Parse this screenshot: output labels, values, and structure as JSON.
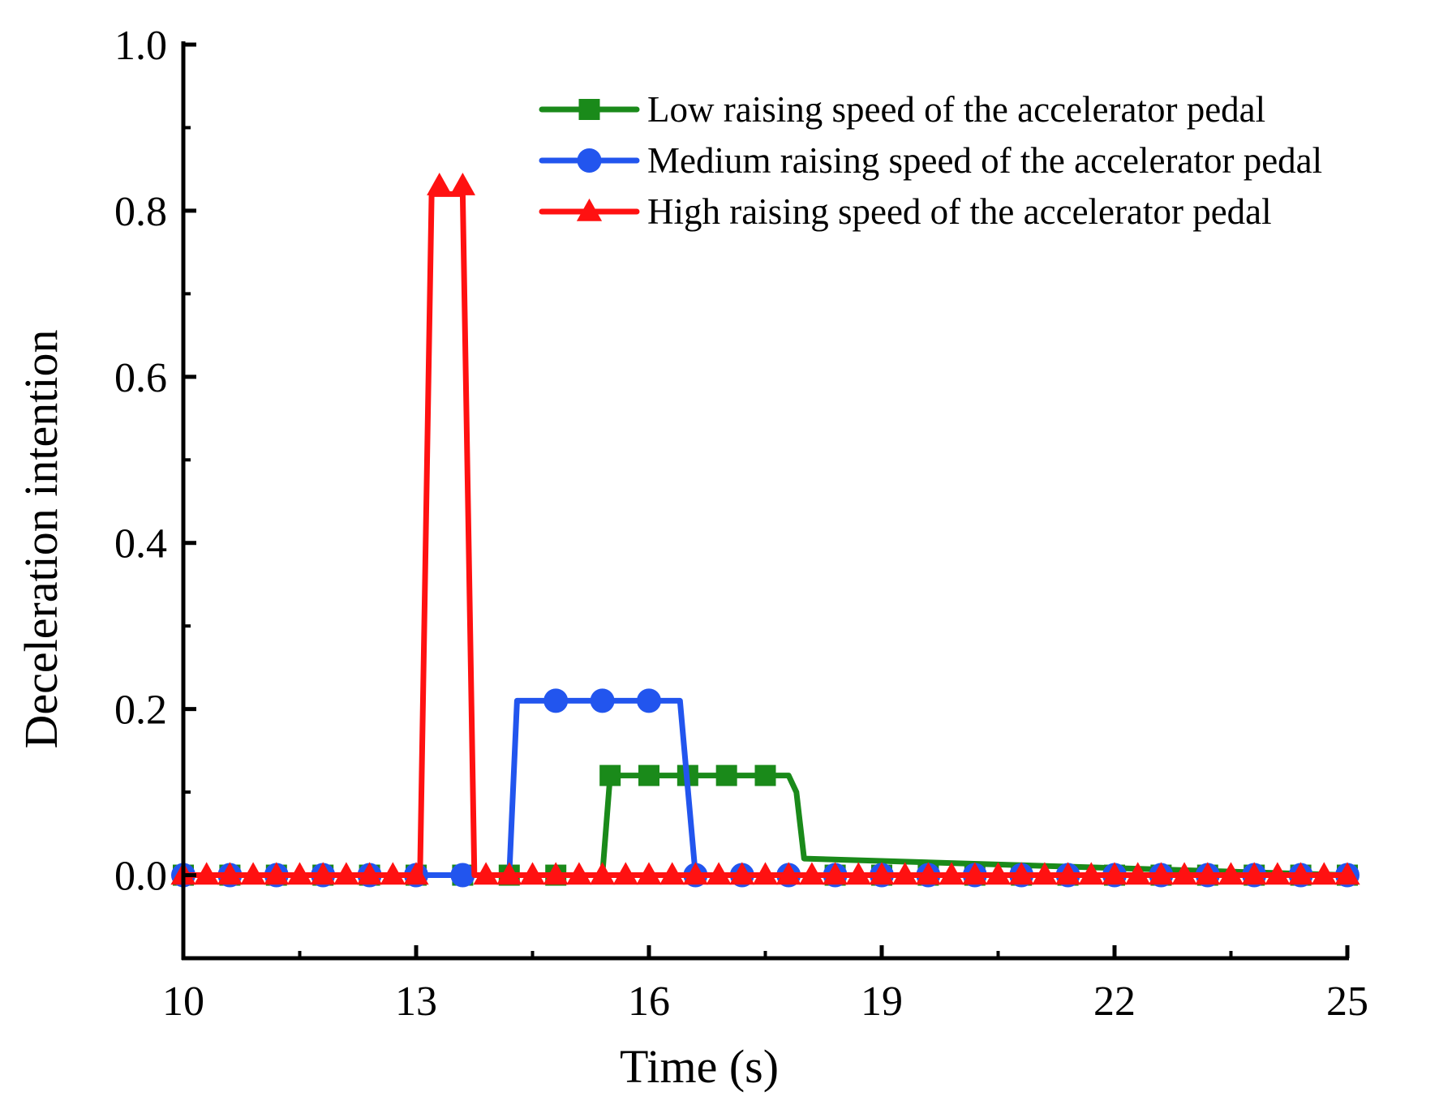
{
  "chart_data": {
    "type": "line",
    "title": "",
    "xlabel": "Time (s)",
    "ylabel": "Deceleration intention",
    "xlim": [
      10,
      25
    ],
    "ylim": [
      -0.1,
      1.0
    ],
    "xticks": [
      10,
      13,
      16,
      19,
      22,
      25
    ],
    "yticks": [
      0.0,
      0.2,
      0.4,
      0.6,
      0.8,
      1.0
    ],
    "xtick_labels": [
      "10",
      "13",
      "16",
      "19",
      "22",
      "25"
    ],
    "ytick_labels": [
      "0.0",
      "0.2",
      "0.4",
      "0.6",
      "0.8",
      "1.0"
    ],
    "legend_position": "top-right",
    "series": [
      {
        "name": "Low raising speed of the accelerator pedal",
        "color": "#1a8a1a",
        "marker": "square",
        "line": [
          [
            10,
            0
          ],
          [
            15.4,
            0
          ],
          [
            15.5,
            0.12
          ],
          [
            17.8,
            0.12
          ],
          [
            17.9,
            0.1
          ],
          [
            18.0,
            0.02
          ],
          [
            25,
            0
          ]
        ],
        "markers": [
          [
            10,
            0
          ],
          [
            10.6,
            0
          ],
          [
            11.2,
            0
          ],
          [
            11.8,
            0
          ],
          [
            12.4,
            0
          ],
          [
            13.0,
            0
          ],
          [
            13.6,
            0
          ],
          [
            14.2,
            0
          ],
          [
            14.8,
            0
          ],
          [
            15.5,
            0.12
          ],
          [
            16.0,
            0.12
          ],
          [
            16.5,
            0.12
          ],
          [
            17.0,
            0.12
          ],
          [
            17.5,
            0.12
          ],
          [
            18.4,
            0
          ],
          [
            19.0,
            0
          ],
          [
            19.6,
            0
          ],
          [
            20.2,
            0
          ],
          [
            20.8,
            0
          ],
          [
            21.4,
            0
          ],
          [
            22.0,
            0
          ],
          [
            22.6,
            0
          ],
          [
            23.2,
            0
          ],
          [
            23.8,
            0
          ],
          [
            24.4,
            0
          ],
          [
            25.0,
            0
          ]
        ]
      },
      {
        "name": "Medium raising speed of the accelerator pedal",
        "color": "#2255ee",
        "marker": "circle",
        "line": [
          [
            10,
            0
          ],
          [
            14.2,
            0
          ],
          [
            14.3,
            0.21
          ],
          [
            16.4,
            0.21
          ],
          [
            16.6,
            0
          ],
          [
            25,
            0
          ]
        ],
        "markers": [
          [
            10,
            0
          ],
          [
            10.6,
            0
          ],
          [
            11.2,
            0
          ],
          [
            11.8,
            0
          ],
          [
            12.4,
            0
          ],
          [
            13.0,
            0
          ],
          [
            13.6,
            0
          ],
          [
            14.8,
            0.21
          ],
          [
            15.4,
            0.21
          ],
          [
            16.0,
            0.21
          ],
          [
            16.6,
            0
          ],
          [
            17.2,
            0
          ],
          [
            17.8,
            0
          ],
          [
            18.4,
            0
          ],
          [
            19.0,
            0
          ],
          [
            19.6,
            0
          ],
          [
            20.2,
            0
          ],
          [
            20.8,
            0
          ],
          [
            21.4,
            0
          ],
          [
            22.0,
            0
          ],
          [
            22.6,
            0
          ],
          [
            23.2,
            0
          ],
          [
            23.8,
            0
          ],
          [
            24.4,
            0
          ],
          [
            25.0,
            0
          ]
        ]
      },
      {
        "name": "High raising speed of the accelerator pedal",
        "color": "#ff1111",
        "marker": "triangle",
        "line": [
          [
            10,
            0
          ],
          [
            13.05,
            0
          ],
          [
            13.2,
            0.82
          ],
          [
            13.6,
            0.82
          ],
          [
            13.75,
            0
          ],
          [
            25,
            0
          ]
        ],
        "markers": [
          [
            10.0,
            0
          ],
          [
            10.3,
            0
          ],
          [
            10.6,
            0
          ],
          [
            10.9,
            0
          ],
          [
            11.2,
            0
          ],
          [
            11.5,
            0
          ],
          [
            11.8,
            0
          ],
          [
            12.1,
            0
          ],
          [
            12.4,
            0
          ],
          [
            12.7,
            0
          ],
          [
            13.0,
            0
          ],
          [
            13.3,
            0.83
          ],
          [
            13.6,
            0.83
          ],
          [
            13.9,
            0
          ],
          [
            14.2,
            0
          ],
          [
            14.5,
            0
          ],
          [
            14.8,
            0
          ],
          [
            15.1,
            0
          ],
          [
            15.4,
            0
          ],
          [
            15.7,
            0
          ],
          [
            16.0,
            0
          ],
          [
            16.3,
            0
          ],
          [
            16.6,
            0
          ],
          [
            16.9,
            0
          ],
          [
            17.2,
            0
          ],
          [
            17.5,
            0
          ],
          [
            17.8,
            0
          ],
          [
            18.1,
            0
          ],
          [
            18.4,
            0
          ],
          [
            18.7,
            0
          ],
          [
            19.0,
            0
          ],
          [
            19.3,
            0
          ],
          [
            19.6,
            0
          ],
          [
            19.9,
            0
          ],
          [
            20.2,
            0
          ],
          [
            20.5,
            0
          ],
          [
            20.8,
            0
          ],
          [
            21.1,
            0
          ],
          [
            21.4,
            0
          ],
          [
            21.7,
            0
          ],
          [
            22.0,
            0
          ],
          [
            22.3,
            0
          ],
          [
            22.6,
            0
          ],
          [
            22.9,
            0
          ],
          [
            23.2,
            0
          ],
          [
            23.5,
            0
          ],
          [
            23.8,
            0
          ],
          [
            24.1,
            0
          ],
          [
            24.4,
            0
          ],
          [
            24.7,
            0
          ],
          [
            25.0,
            0
          ]
        ]
      }
    ]
  }
}
